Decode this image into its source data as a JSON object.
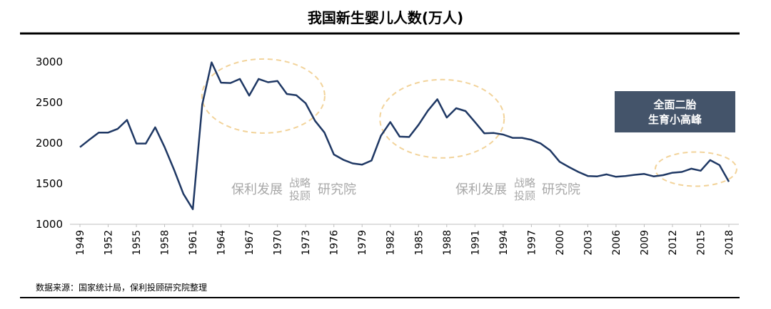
{
  "chart_data": {
    "type": "line",
    "title": "我国新生婴儿人数(万人)",
    "xlabel": "",
    "ylabel": "",
    "ylim": [
      1000,
      3000
    ],
    "yticks": [
      1000,
      1500,
      2000,
      2500,
      3000
    ],
    "xtick_labels": [
      "1949",
      "1952",
      "1955",
      "1958",
      "1961",
      "1964",
      "1967",
      "1970",
      "1973",
      "1976",
      "1979",
      "1982",
      "1985",
      "1988",
      "1991",
      "1994",
      "1997",
      "2000",
      "2003",
      "2006",
      "2009",
      "2012",
      "2015",
      "2018"
    ],
    "series": [
      {
        "name": "新生婴儿人数",
        "color": "#1f3864",
        "x": [
          1949,
          1950,
          1951,
          1952,
          1953,
          1954,
          1955,
          1956,
          1957,
          1958,
          1959,
          1960,
          1961,
          1962,
          1963,
          1964,
          1965,
          1966,
          1967,
          1968,
          1969,
          1970,
          1971,
          1972,
          1973,
          1974,
          1975,
          1976,
          1977,
          1978,
          1979,
          1980,
          1981,
          1982,
          1983,
          1984,
          1985,
          1986,
          1987,
          1988,
          1989,
          1990,
          1991,
          1992,
          1993,
          1994,
          1995,
          1996,
          1997,
          1998,
          1999,
          2000,
          2001,
          2002,
          2003,
          2004,
          2005,
          2006,
          2007,
          2008,
          2009,
          2010,
          2011,
          2012,
          2013,
          2014,
          2015,
          2016,
          2017,
          2018
        ],
        "values": [
          1950,
          2042,
          2130,
          2130,
          2175,
          2285,
          1995,
          1995,
          2195,
          1950,
          1675,
          1375,
          1185,
          2475,
          2995,
          2745,
          2740,
          2790,
          2585,
          2790,
          2750,
          2765,
          2605,
          2590,
          2490,
          2275,
          2130,
          1860,
          1795,
          1750,
          1735,
          1785,
          2090,
          2260,
          2080,
          2075,
          2225,
          2400,
          2540,
          2315,
          2430,
          2395,
          2260,
          2120,
          2125,
          2105,
          2065,
          2065,
          2040,
          1995,
          1910,
          1770,
          1705,
          1645,
          1595,
          1590,
          1615,
          1585,
          1595,
          1610,
          1620,
          1590,
          1605,
          1635,
          1645,
          1685,
          1660,
          1790,
          1730,
          1525
        ]
      }
    ],
    "annotation": {
      "line1": "全面二胎",
      "line2": "生育小高峰",
      "bg_color": "#44546a"
    },
    "watermark": {
      "part1": "保利发展",
      "part2_top": "战略",
      "part2_bottom": "投顾",
      "part3": "研究院"
    },
    "highlight_color": "#f2d39a",
    "source": "数据来源：国家统计局，保利投顾研究院整理"
  }
}
